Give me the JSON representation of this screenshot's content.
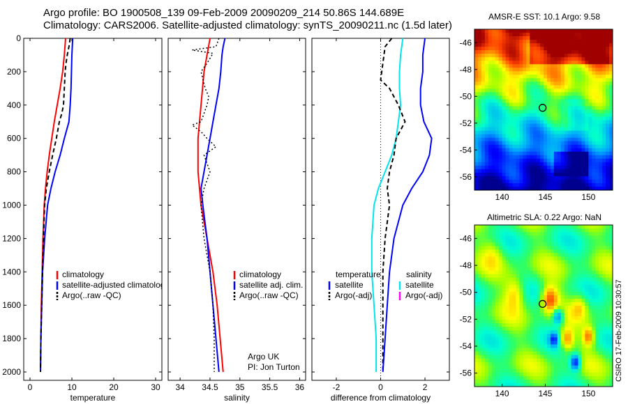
{
  "header": {
    "line1": "Argo profile: BO 1900508_139 09-Feb-2009 20090209_214 50.86S 144.689E",
    "line2": "Climatology: CARS2006. Satellite-adjusted climatology: synTS_20090211.nc (1.5d later)"
  },
  "stamp": "CSIRO 17-Feb-2009 10:30:57",
  "colors": {
    "climatology": "#ff0000",
    "satellite": "#0000ff",
    "argo": "#000000",
    "cyan": "#00e5ee",
    "magenta": "#ff00ff"
  },
  "chart_data": [
    {
      "type": "line",
      "xlabel": "temperature",
      "ylabel": "",
      "xlim": [
        -1.5,
        31.5
      ],
      "ylim": [
        0,
        2050
      ],
      "y_reversed": true,
      "xticks": [
        0,
        10,
        20,
        30
      ],
      "yticks": [
        0,
        200,
        400,
        600,
        800,
        1000,
        1200,
        1400,
        1600,
        1800,
        2000
      ],
      "legend": {
        "placement": "lower-right",
        "entries": [
          "climatology",
          "satellite-adjusted climatology",
          "Argo(..raw -QC)"
        ]
      },
      "series": [
        {
          "name": "climatology",
          "color": "#ff0000",
          "dash": "",
          "points": [
            [
              8.5,
              0
            ],
            [
              8.2,
              100
            ],
            [
              7.8,
              200
            ],
            [
              7.2,
              300
            ],
            [
              6.5,
              400
            ],
            [
              5.8,
              500
            ],
            [
              5.2,
              600
            ],
            [
              4.6,
              700
            ],
            [
              4.1,
              800
            ],
            [
              3.7,
              900
            ],
            [
              3.4,
              1000
            ],
            [
              3.1,
              1200
            ],
            [
              2.9,
              1400
            ],
            [
              2.7,
              1600
            ],
            [
              2.6,
              1800
            ],
            [
              2.5,
              2000
            ]
          ]
        },
        {
          "name": "satellite-adjusted climatology",
          "color": "#0000ff",
          "dash": "",
          "points": [
            [
              10.2,
              0
            ],
            [
              10.0,
              100
            ],
            [
              9.9,
              200
            ],
            [
              9.8,
              300
            ],
            [
              9.6,
              400
            ],
            [
              9.3,
              500
            ],
            [
              8.2,
              600
            ],
            [
              7.2,
              700
            ],
            [
              6.0,
              800
            ],
            [
              5.0,
              900
            ],
            [
              4.2,
              1000
            ],
            [
              3.5,
              1200
            ],
            [
              3.0,
              1400
            ],
            [
              2.8,
              1600
            ],
            [
              2.6,
              1800
            ],
            [
              2.5,
              2000
            ]
          ]
        },
        {
          "name": "Argo(..raw -QC)",
          "color": "#000000",
          "dash": "6 4",
          "points": [
            [
              9.6,
              0
            ],
            [
              9.3,
              50
            ],
            [
              8.9,
              100
            ],
            [
              8.6,
              150
            ],
            [
              8.4,
              200
            ],
            [
              8.2,
              300
            ],
            [
              8.0,
              400
            ],
            [
              7.6,
              450
            ],
            [
              7.0,
              500
            ],
            [
              6.3,
              600
            ],
            [
              5.4,
              700
            ],
            [
              4.6,
              800
            ],
            [
              3.9,
              900
            ],
            [
              3.5,
              1000
            ],
            [
              3.2,
              1200
            ],
            [
              3.0,
              1400
            ],
            [
              2.8,
              1600
            ],
            [
              2.6,
              1800
            ],
            [
              2.5,
              2000
            ]
          ]
        }
      ]
    },
    {
      "type": "line",
      "xlabel": "salinity",
      "ylabel": "",
      "xlim": [
        33.8,
        36.1
      ],
      "ylim": [
        0,
        2050
      ],
      "y_reversed": true,
      "xticks": [
        34,
        34.5,
        35,
        35.5,
        36
      ],
      "yticks": [
        0,
        200,
        400,
        600,
        800,
        1000,
        1200,
        1400,
        1600,
        1800,
        2000
      ],
      "legend": {
        "placement": "lower-right",
        "entries": [
          "climatology",
          "satellite adj. clim.",
          "Argo(..raw -QC)"
        ]
      },
      "annotation": [
        "Argo UK",
        "PI: Jon Turton"
      ],
      "series": [
        {
          "name": "climatology",
          "color": "#ff0000",
          "dash": "",
          "points": [
            [
              34.5,
              0
            ],
            [
              34.45,
              100
            ],
            [
              34.4,
              200
            ],
            [
              34.35,
              400
            ],
            [
              34.3,
              600
            ],
            [
              34.3,
              800
            ],
            [
              34.35,
              1000
            ],
            [
              34.45,
              1200
            ],
            [
              34.55,
              1400
            ],
            [
              34.62,
              1600
            ],
            [
              34.67,
              1800
            ],
            [
              34.72,
              2000
            ]
          ]
        },
        {
          "name": "satellite adj. clim.",
          "color": "#0000ff",
          "dash": "",
          "points": [
            [
              34.75,
              0
            ],
            [
              34.72,
              50
            ],
            [
              34.7,
              100
            ],
            [
              34.68,
              200
            ],
            [
              34.65,
              300
            ],
            [
              34.6,
              400
            ],
            [
              34.55,
              500
            ],
            [
              34.5,
              600
            ],
            [
              34.45,
              700
            ],
            [
              34.4,
              800
            ],
            [
              34.35,
              900
            ],
            [
              34.38,
              1000
            ],
            [
              34.45,
              1200
            ],
            [
              34.5,
              1400
            ],
            [
              34.55,
              1600
            ],
            [
              34.6,
              1800
            ],
            [
              34.65,
              2000
            ]
          ]
        },
        {
          "name": "Argo(..raw -QC)",
          "color": "#000000",
          "dash": "2 3",
          "points": [
            [
              34.65,
              0
            ],
            [
              34.6,
              50
            ],
            [
              34.2,
              70
            ],
            [
              34.55,
              90
            ],
            [
              34.45,
              150
            ],
            [
              34.35,
              200
            ],
            [
              34.42,
              300
            ],
            [
              34.48,
              350
            ],
            [
              34.45,
              400
            ],
            [
              34.4,
              450
            ],
            [
              34.35,
              500
            ],
            [
              34.2,
              520
            ],
            [
              34.35,
              560
            ],
            [
              34.45,
              600
            ],
            [
              34.6,
              650
            ],
            [
              34.4,
              700
            ],
            [
              34.45,
              750
            ],
            [
              34.5,
              800
            ],
            [
              34.4,
              900
            ],
            [
              34.35,
              1000
            ],
            [
              34.4,
              1200
            ],
            [
              34.5,
              1400
            ],
            [
              34.55,
              1600
            ],
            [
              34.57,
              1800
            ],
            [
              34.57,
              2000
            ]
          ]
        }
      ]
    },
    {
      "type": "line",
      "xlabel": "difference from climatology",
      "ylabel": "",
      "xlim": [
        -3.1,
        3.1
      ],
      "ylim": [
        0,
        2050
      ],
      "y_reversed": true,
      "xticks": [
        -2,
        0,
        2
      ],
      "yticks": [
        0,
        200,
        400,
        600,
        800,
        1000,
        1200,
        1400,
        1600,
        1800,
        2000
      ],
      "zero_line": true,
      "legend_left": {
        "title": "temperature",
        "entries": [
          "satellite",
          "Argo(-adj)"
        ]
      },
      "legend_right": {
        "title": "salinity",
        "entries": [
          "satellite",
          "Argo(-adj)"
        ]
      },
      "series": [
        {
          "name": "temperature satellite",
          "color": "#00e5ee",
          "dash": "",
          "points": [
            [
              1.0,
              0
            ],
            [
              0.9,
              100
            ],
            [
              0.85,
              200
            ],
            [
              0.85,
              300
            ],
            [
              0.9,
              400
            ],
            [
              0.8,
              500
            ],
            [
              0.7,
              600
            ],
            [
              0.5,
              700
            ],
            [
              0.2,
              800
            ],
            [
              -0.1,
              900
            ],
            [
              -0.3,
              1000
            ],
            [
              -0.4,
              1200
            ],
            [
              -0.4,
              1400
            ],
            [
              -0.3,
              1600
            ],
            [
              -0.2,
              1800
            ],
            [
              -0.2,
              2000
            ]
          ]
        },
        {
          "name": "temperature Argo(-adj)",
          "color": "#000000",
          "dash": "6 4",
          "points": [
            [
              0.5,
              0
            ],
            [
              0.2,
              50
            ],
            [
              0.1,
              150
            ],
            [
              0.0,
              250
            ],
            [
              0.4,
              300
            ],
            [
              0.8,
              400
            ],
            [
              1.1,
              500
            ],
            [
              0.7,
              600
            ],
            [
              0.6,
              700
            ],
            [
              0.4,
              800
            ],
            [
              0.3,
              900
            ],
            [
              0.4,
              1000
            ],
            [
              0.2,
              1200
            ],
            [
              0.1,
              1400
            ],
            [
              0.1,
              1600
            ],
            [
              0.1,
              1800
            ],
            [
              0.1,
              2000
            ]
          ]
        },
        {
          "name": "salinity satellite",
          "color": "#0000ff",
          "dash": "",
          "points": [
            [
              2.0,
              0
            ],
            [
              1.9,
              100
            ],
            [
              1.9,
              200
            ],
            [
              1.8,
              300
            ],
            [
              1.8,
              400
            ],
            [
              1.95,
              500
            ],
            [
              2.3,
              600
            ],
            [
              2.2,
              700
            ],
            [
              1.9,
              800
            ],
            [
              1.4,
              900
            ],
            [
              1.0,
              1000
            ],
            [
              0.6,
              1200
            ],
            [
              0.4,
              1400
            ],
            [
              0.3,
              1600
            ],
            [
              0.2,
              1800
            ],
            [
              0.1,
              2000
            ]
          ]
        },
        {
          "name": "salinity Argo(-adj)",
          "color": "#ff00ff",
          "dash": "",
          "points": []
        }
      ]
    }
  ],
  "maps": [
    {
      "title": "AMSR-E SST: 10.1  Argo: 9.58",
      "kind": "sst",
      "lon_range": [
        136.8,
        152.8
      ],
      "lat_range": [
        -57,
        -45
      ],
      "xticks": [
        140,
        145,
        150
      ],
      "yticks": [
        -46,
        -48,
        -50,
        -52,
        -54,
        -56
      ],
      "marker": {
        "lon": 144.689,
        "lat": -50.86
      }
    },
    {
      "title": "Altimetric SLA: 0.22  Argo: NaN",
      "kind": "sla",
      "lon_range": [
        136.8,
        152.8
      ],
      "lat_range": [
        -57,
        -45
      ],
      "xticks": [
        140,
        145,
        150
      ],
      "yticks": [
        -46,
        -48,
        -50,
        -52,
        -54,
        -56
      ],
      "marker": {
        "lon": 144.689,
        "lat": -50.86
      }
    }
  ]
}
